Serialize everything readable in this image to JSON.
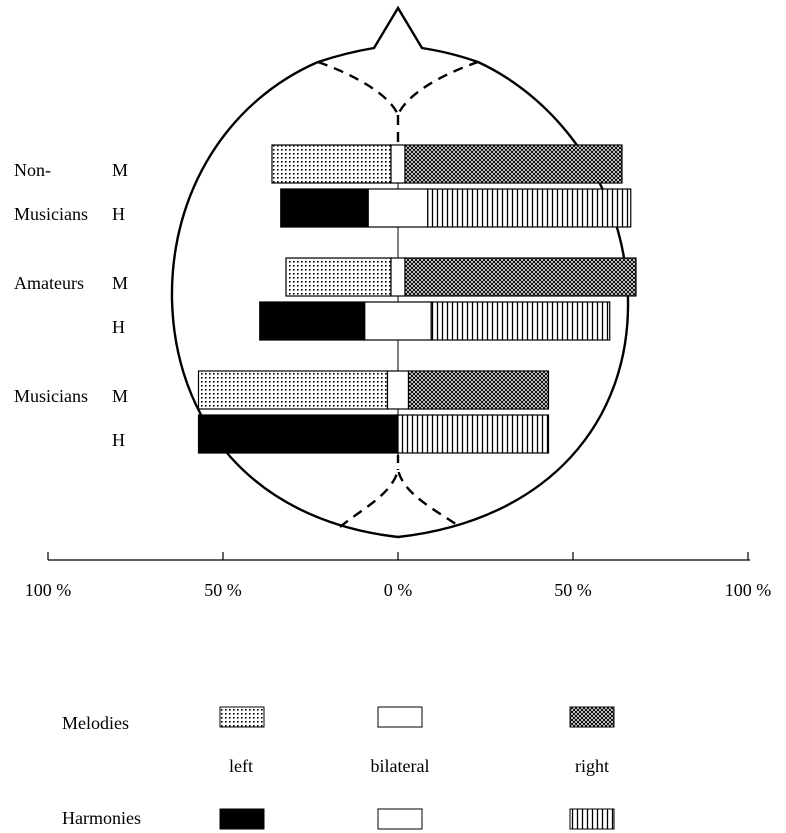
{
  "chart_data": {
    "type": "diverging-bar",
    "groups": [
      {
        "name_lines": [
          "Non-",
          "Musicians"
        ]
      },
      {
        "name_lines": [
          "Amateurs"
        ]
      },
      {
        "name_lines": [
          "Musicians"
        ]
      }
    ],
    "categories": [
      "M",
      "H",
      "M",
      "H",
      "M",
      "H"
    ],
    "series": [
      {
        "name": "left",
        "values": [
          34,
          25,
          30,
          30,
          54,
          57
        ]
      },
      {
        "name": "bilateral",
        "values": [
          4,
          17,
          4,
          19,
          6,
          0
        ]
      },
      {
        "name": "right",
        "values": [
          62,
          58,
          66,
          51,
          40,
          43
        ]
      }
    ],
    "xlim": [
      -100,
      100
    ],
    "xticks": [
      {
        "value": -100,
        "label": "100 %"
      },
      {
        "value": -50,
        "label": "50 %"
      },
      {
        "value": 0,
        "label": "0 %"
      },
      {
        "value": 50,
        "label": "50 %"
      },
      {
        "value": 100,
        "label": "100 %"
      }
    ],
    "legend_rows": [
      "Melodies",
      "Harmonies"
    ]
  }
}
